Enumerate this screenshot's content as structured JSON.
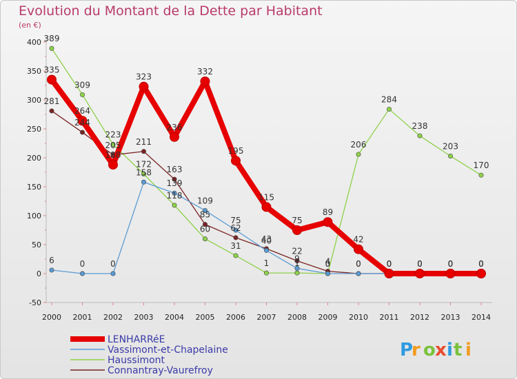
{
  "chart_data": {
    "type": "line",
    "title": "Evolution du Montant de la Dette par Habitant",
    "subtitle": "(en €)",
    "x": [
      2000,
      2001,
      2002,
      2003,
      2004,
      2005,
      2006,
      2007,
      2008,
      2009,
      2010,
      2011,
      2012,
      2013,
      2014
    ],
    "ylim": [
      -50,
      400
    ],
    "yticks": [
      -50,
      0,
      50,
      100,
      150,
      200,
      250,
      300,
      350,
      400
    ],
    "grid": false,
    "legend_position": "bottom-left",
    "series": [
      {
        "name": "LENHARRéE",
        "color": "#e60000",
        "values": [
          335,
          264,
          188,
          323,
          236,
          332,
          195,
          115,
          75,
          89,
          42,
          0,
          0,
          0,
          0
        ],
        "labels": [
          "335",
          "264",
          "188",
          "323",
          "236",
          "332",
          "195",
          "115",
          "75",
          "89",
          "42",
          "0",
          "0",
          "0",
          "0"
        ]
      },
      {
        "name": "Vassimont-et-Chapelaine",
        "color": "#5a9bd4",
        "values": [
          6,
          0,
          0,
          158,
          139,
          109,
          75,
          40,
          9,
          0,
          0,
          0,
          0,
          0,
          0
        ],
        "labels": [
          "6",
          "0",
          "0",
          "158",
          "139",
          "109",
          "75",
          "40",
          "9",
          "0",
          "0",
          "0",
          "0",
          "0",
          "0"
        ]
      },
      {
        "name": "Haussimont",
        "color": "#8ed14a",
        "values": [
          389,
          309,
          223,
          172,
          118,
          60,
          31,
          1,
          1,
          0,
          206,
          284,
          238,
          203,
          170
        ],
        "labels": [
          "389",
          "309",
          "223",
          "172",
          "118",
          "60",
          "31",
          "1",
          "1",
          "0",
          "206",
          "284",
          "238",
          "203",
          "170"
        ]
      },
      {
        "name": "Connantray-Vaurefroy",
        "color": "#7a2323",
        "values": [
          281,
          244,
          205,
          211,
          163,
          85,
          62,
          43,
          22,
          4,
          0,
          0,
          0,
          0,
          0
        ],
        "labels": [
          "281",
          "244",
          "205",
          "211",
          "163",
          "85",
          "62",
          "43",
          "22",
          "4",
          "0",
          "0",
          "0",
          "0",
          "0"
        ]
      }
    ]
  },
  "logo": {
    "text": "Proxiti"
  }
}
